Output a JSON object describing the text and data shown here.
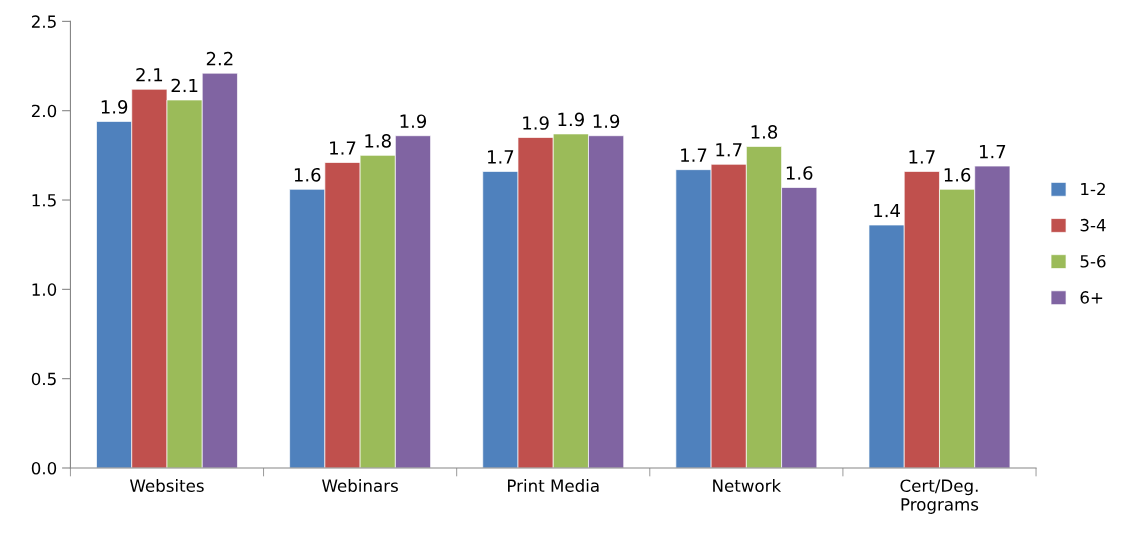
{
  "chart_data": {
    "type": "bar",
    "categories": [
      "Websites",
      "Webinars",
      "Print Media",
      "Network",
      "Cert/Deg.\nPrograms"
    ],
    "series": [
      {
        "name": "1-2",
        "color": "#4f81bd",
        "values": [
          1.94,
          1.56,
          1.66,
          1.67,
          1.36
        ],
        "value_labels": [
          "1.9",
          "1.6",
          "1.7",
          "1.7",
          "1.4"
        ]
      },
      {
        "name": "3-4",
        "color": "#c0504d",
        "values": [
          2.12,
          1.71,
          1.85,
          1.7,
          1.66
        ],
        "value_labels": [
          "2.1",
          "1.7",
          "1.9",
          "1.7",
          "1.7"
        ]
      },
      {
        "name": "5-6",
        "color": "#9bbb59",
        "values": [
          2.06,
          1.75,
          1.87,
          1.8,
          1.56
        ],
        "value_labels": [
          "2.1",
          "1.8",
          "1.9",
          "1.8",
          "1.6"
        ]
      },
      {
        "name": "6+",
        "color": "#8064a2",
        "values": [
          2.21,
          1.86,
          1.86,
          1.57,
          1.69
        ],
        "value_labels": [
          "2.2",
          "1.9",
          "1.9",
          "1.6",
          "1.7"
        ]
      }
    ],
    "ylim": [
      0,
      2.5
    ],
    "yticks": [
      {
        "value": 0,
        "label": "0.0"
      },
      {
        "value": 0.5,
        "label": "0.5"
      },
      {
        "value": 1,
        "label": "1.0"
      },
      {
        "value": 1.5,
        "label": "1.5"
      },
      {
        "value": 2,
        "label": "2.0"
      },
      {
        "value": 2.5,
        "label": "2.5"
      }
    ],
    "grid": false,
    "legend": "right"
  }
}
